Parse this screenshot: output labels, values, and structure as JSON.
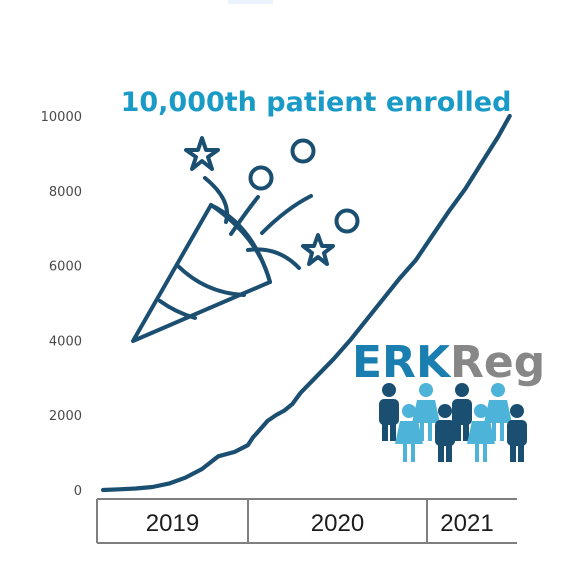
{
  "colors": {
    "navy": "#1b4f72",
    "teal": "#1a9bc7",
    "light_blue": "#4db3d8",
    "gray": "#878787",
    "axis": "#7f7f7f",
    "tick_text": "#4a4a4a",
    "year_text": "#1d1d1d"
  },
  "annotation": {
    "text": "10,000th patient enrolled"
  },
  "logo": {
    "part1": "ERK",
    "part2": "Reg",
    "icon": "group-of-people-icon",
    "people_colors": [
      "navy",
      "light_blue",
      "navy",
      "light_blue",
      "navy",
      "light_blue",
      "navy"
    ]
  },
  "decoration": {
    "icon": "party-popper-icon"
  },
  "chart_data": {
    "type": "line",
    "title": "",
    "xlabel": "",
    "ylabel": "",
    "ylim": [
      0,
      10000
    ],
    "yticks": [
      0,
      2000,
      4000,
      6000,
      8000,
      10000
    ],
    "grid": false,
    "x_period_labels": [
      {
        "label": "2019",
        "start": 0.0,
        "end": 1.0
      },
      {
        "label": "2020",
        "start": 1.0,
        "end": 2.0
      },
      {
        "label": "2021",
        "start": 2.0,
        "end": 2.5
      }
    ],
    "series": [
      {
        "name": "",
        "x": [
          0.0,
          0.1,
          0.2,
          0.3,
          0.4,
          0.5,
          0.6,
          0.7,
          0.8,
          0.88,
          0.91,
          0.96,
          1.0,
          1.05,
          1.1,
          1.15,
          1.2,
          1.3,
          1.4,
          1.5,
          1.6,
          1.7,
          1.8,
          1.9,
          2.0,
          2.1,
          2.2,
          2.3,
          2.4,
          2.47
        ],
        "values": [
          0,
          20,
          40,
          80,
          170,
          330,
          560,
          900,
          1020,
          1200,
          1400,
          1650,
          1850,
          2000,
          2120,
          2300,
          2600,
          3050,
          3500,
          4000,
          4550,
          5100,
          5650,
          6150,
          6800,
          7450,
          8050,
          8750,
          9450,
          10000
        ]
      }
    ]
  }
}
